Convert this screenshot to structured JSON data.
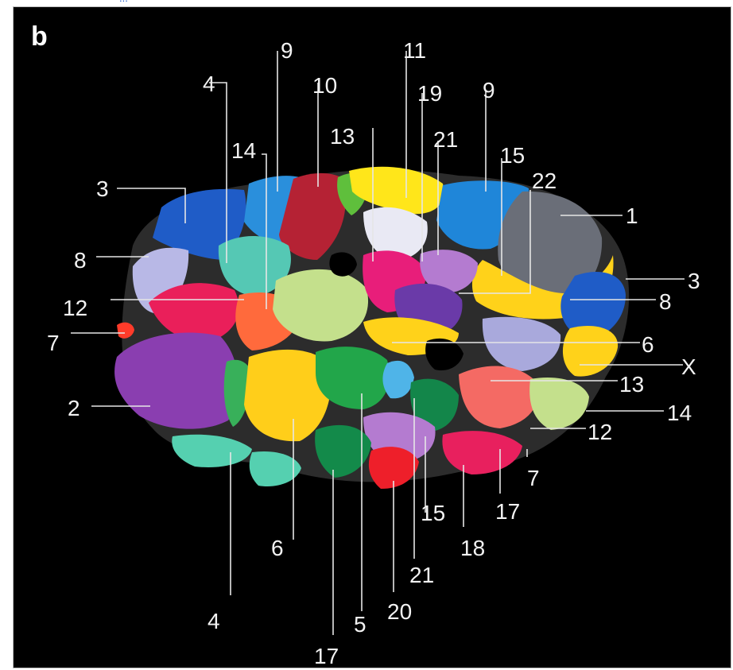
{
  "caption_fragment": "...",
  "panel_letter": "b",
  "labels": [
    "3",
    "4",
    "9",
    "14",
    "10",
    "13",
    "11",
    "19",
    "21",
    "9",
    "15",
    "22",
    "1",
    "3",
    "8",
    "6",
    "X",
    "13",
    "14",
    "12",
    "7",
    "17",
    "18",
    "15",
    "21",
    "20",
    "5",
    "17",
    "4",
    "6",
    "2",
    "7",
    "12",
    "8"
  ],
  "colors": {
    "background": "#000000",
    "label_text": "#f2f2f2",
    "leader_line": "#e6e6e6"
  }
}
